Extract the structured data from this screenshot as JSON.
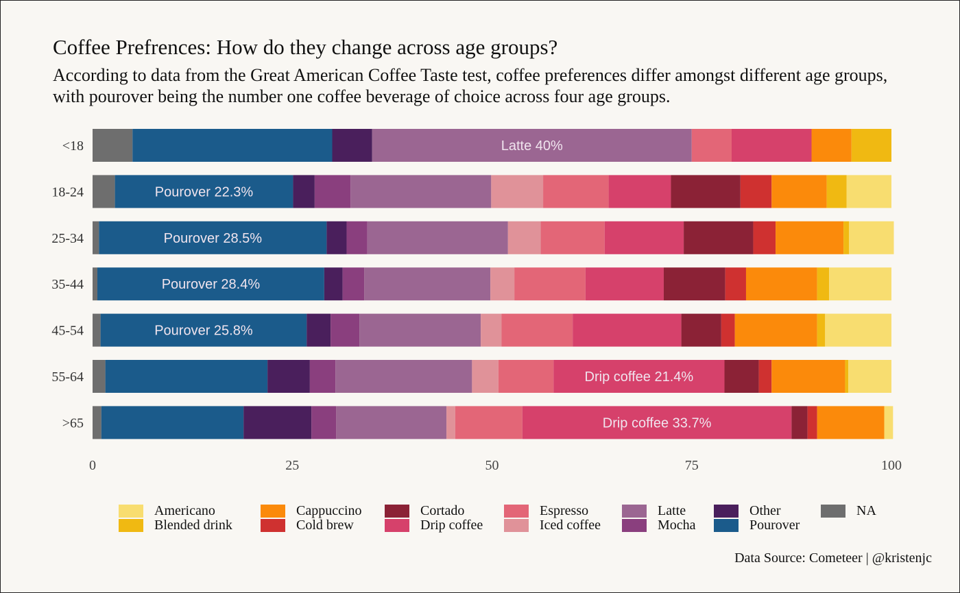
{
  "title": "Coffee Prefrences: How do they change across age groups?",
  "subtitle": "According to data from the Great American Coffee Taste test, coffee preferences differ amongst different age groups, with pourover being the number one coffee beverage of choice across four age groups.",
  "source": "Data Source: Cometeer | @kristenjc",
  "chart_data": {
    "type": "bar",
    "orientation": "horizontal",
    "stacked": true,
    "xlim": [
      0,
      100
    ],
    "x_ticks": [
      "0",
      "25",
      "50",
      "75",
      "100"
    ],
    "categories": [
      "<18",
      "18-24",
      "25-34",
      "35-44",
      "45-54",
      "55-64",
      ">65"
    ],
    "stack_order": [
      "NA",
      "Pourover",
      "Other",
      "Mocha",
      "Latte",
      "Iced coffee",
      "Espresso",
      "Drip coffee",
      "Cortado",
      "Cold brew",
      "Cappuccino",
      "Blended drink",
      "Americano"
    ],
    "series": [
      {
        "name": "NA",
        "color": "#6e6e6e",
        "values": [
          5,
          2.8,
          0.8,
          0.6,
          1.0,
          1.6,
          1.1
        ]
      },
      {
        "name": "Pourover",
        "color": "#1b5b8b",
        "values": [
          25,
          22.3,
          28.5,
          28.4,
          25.8,
          20.3,
          17.8
        ]
      },
      {
        "name": "Other",
        "color": "#4a1f5c",
        "values": [
          5,
          2.7,
          2.5,
          2.3,
          3.0,
          5.3,
          8.5
        ]
      },
      {
        "name": "Mocha",
        "color": "#8a3f7e",
        "values": [
          0,
          4.5,
          2.6,
          2.7,
          3.6,
          3.2,
          3.1
        ]
      },
      {
        "name": "Latte",
        "color": "#9b6692",
        "values": [
          40,
          17.6,
          17.6,
          15.8,
          15.2,
          17.1,
          13.8
        ]
      },
      {
        "name": "Iced coffee",
        "color": "#e09299",
        "values": [
          0,
          6.5,
          4.1,
          3.0,
          2.6,
          3.3,
          1.1
        ]
      },
      {
        "name": "Espresso",
        "color": "#e36677",
        "values": [
          5,
          8.2,
          8.0,
          8.9,
          8.9,
          6.9,
          8.4
        ]
      },
      {
        "name": "Drip coffee",
        "color": "#d6416b",
        "values": [
          10,
          7.8,
          9.9,
          9.8,
          13.6,
          21.4,
          33.7
        ]
      },
      {
        "name": "Cortado",
        "color": "#8b2236",
        "values": [
          0,
          8.7,
          8.7,
          7.7,
          5.0,
          4.3,
          2.0
        ]
      },
      {
        "name": "Cold brew",
        "color": "#cf3130",
        "values": [
          0,
          3.9,
          2.8,
          2.6,
          1.7,
          1.6,
          1.2
        ]
      },
      {
        "name": "Cappuccino",
        "color": "#fb8a0b",
        "values": [
          5,
          6.9,
          8.5,
          8.9,
          10.3,
          9.2,
          8.4
        ]
      },
      {
        "name": "Blended drink",
        "color": "#f0b912",
        "values": [
          5,
          2.5,
          0.7,
          1.5,
          1.0,
          0.4,
          0.0
        ]
      },
      {
        "name": "Americano",
        "color": "#f8dd70",
        "values": [
          0,
          5.6,
          5.6,
          7.8,
          8.3,
          5.4,
          1.1
        ]
      }
    ],
    "annotations": [
      {
        "category": "<18",
        "series": "Latte",
        "text": "Latte 40%"
      },
      {
        "category": "18-24",
        "series": "Pourover",
        "text": "Pourover 22.3%"
      },
      {
        "category": "25-34",
        "series": "Pourover",
        "text": "Pourover 28.5%"
      },
      {
        "category": "35-44",
        "series": "Pourover",
        "text": "Pourover 28.4%"
      },
      {
        "category": "45-54",
        "series": "Pourover",
        "text": "Pourover 25.8%"
      },
      {
        "category": "55-64",
        "series": "Drip coffee",
        "text": "Drip coffee 21.4%"
      },
      {
        "category": ">65",
        "series": "Drip coffee",
        "text": "Drip coffee 33.7%"
      }
    ],
    "legend": {
      "placement": "bottom",
      "order": [
        "Americano",
        "Blended drink",
        "Cappuccino",
        "Cold brew",
        "Cortado",
        "Drip coffee",
        "Espresso",
        "Iced coffee",
        "Latte",
        "Mocha",
        "Other",
        "Pourover",
        "NA"
      ]
    },
    "grid": false
  }
}
